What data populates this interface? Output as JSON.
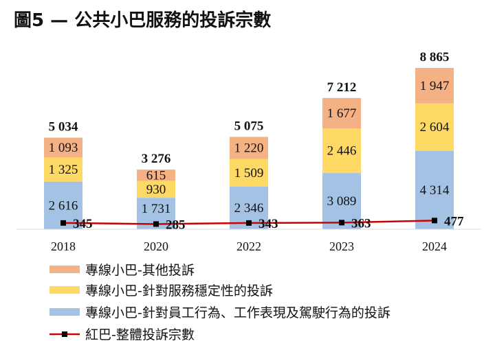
{
  "chart_data": {
    "type": "bar",
    "stacked": true,
    "title": "圖5 — 公共小巴服務的投訴宗數",
    "categories": [
      "2018",
      "2020",
      "2022",
      "2023",
      "2024"
    ],
    "series": [
      {
        "name": "專線小巴-針對員工行為、工作表現及駕駛行為的投訴",
        "values": [
          2616,
          1731,
          2346,
          3089,
          4314
        ],
        "color": "#a4c2e4",
        "label_text": [
          "2 616",
          "1 731",
          "2 346",
          "3 089",
          "4 314"
        ]
      },
      {
        "name": "專線小巴-針對服務穩定性的投訴",
        "values": [
          1325,
          930,
          1509,
          2446,
          2604
        ],
        "color": "#ffd966",
        "label_text": [
          "1 325",
          "930",
          "1 509",
          "2 446",
          "2 604"
        ]
      },
      {
        "name": "專線小巴-其他投訴",
        "values": [
          1093,
          615,
          1220,
          1677,
          1947
        ],
        "color": "#f4b183",
        "label_text": [
          "1 093",
          "615",
          "1 220",
          "1 677",
          "1 947"
        ]
      }
    ],
    "totals": [
      5034,
      3276,
      5075,
      7212,
      8865
    ],
    "totals_text": [
      "5 034",
      "3 276",
      "5 075",
      "7 212",
      "8 865"
    ],
    "line_series": {
      "name": "紅巴-整體投訴宗數",
      "values": [
        345,
        285,
        343,
        363,
        477
      ],
      "color": "#cc0000",
      "label_text": [
        "345",
        "285",
        "343",
        "363",
        "477"
      ]
    },
    "legend_order": [
      "專線小巴-其他投訴",
      "專線小巴-針對服務穩定性的投訴",
      "專線小巴-針對員工行為、工作表現及駕駛行為的投訴",
      "紅巴-整體投訴宗數"
    ],
    "legend_position": "bottom",
    "grid": false
  }
}
